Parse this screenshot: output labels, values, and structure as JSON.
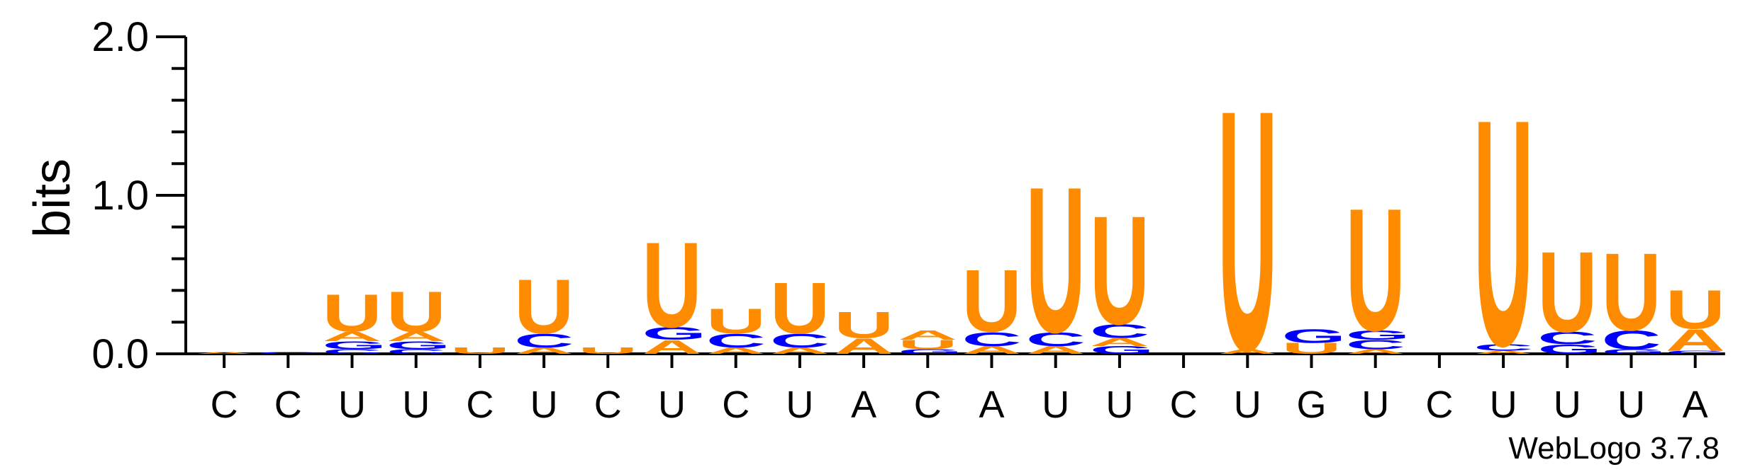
{
  "chart_data": {
    "type": "sequence-logo",
    "ylabel": "bits",
    "ylim": [
      0,
      2
    ],
    "yticks": [
      "0.0",
      "1.0",
      "2.0"
    ],
    "colors": {
      "U": "#ff8c00",
      "C": "#0000ff",
      "G": "#0000ff",
      "A": "#ff8c00"
    },
    "positions": [
      {
        "label": "C",
        "stack": [
          {
            "letter": "A",
            "h": 0.01
          }
        ]
      },
      {
        "label": "C",
        "stack": [
          {
            "letter": "C",
            "h": 0.01
          }
        ]
      },
      {
        "label": "U",
        "stack": [
          {
            "letter": "C",
            "h": 0.03
          },
          {
            "letter": "G",
            "h": 0.05
          },
          {
            "letter": "A",
            "h": 0.06
          },
          {
            "letter": "U",
            "h": 0.24
          }
        ]
      },
      {
        "label": "U",
        "stack": [
          {
            "letter": "C",
            "h": 0.03
          },
          {
            "letter": "G",
            "h": 0.05
          },
          {
            "letter": "A",
            "h": 0.06
          },
          {
            "letter": "U",
            "h": 0.26
          }
        ]
      },
      {
        "label": "C",
        "stack": [
          {
            "letter": "U",
            "h": 0.04
          }
        ]
      },
      {
        "label": "U",
        "stack": [
          {
            "letter": "A",
            "h": 0.04
          },
          {
            "letter": "C",
            "h": 0.09
          },
          {
            "letter": "U",
            "h": 0.35
          }
        ]
      },
      {
        "label": "C",
        "stack": [
          {
            "letter": "U",
            "h": 0.04
          }
        ]
      },
      {
        "label": "U",
        "stack": [
          {
            "letter": "A",
            "h": 0.09
          },
          {
            "letter": "G",
            "h": 0.08
          },
          {
            "letter": "U",
            "h": 0.55
          }
        ]
      },
      {
        "label": "C",
        "stack": [
          {
            "letter": "A",
            "h": 0.04
          },
          {
            "letter": "C",
            "h": 0.09
          },
          {
            "letter": "U",
            "h": 0.16
          }
        ]
      },
      {
        "label": "U",
        "stack": [
          {
            "letter": "A",
            "h": 0.04
          },
          {
            "letter": "C",
            "h": 0.09
          },
          {
            "letter": "U",
            "h": 0.33
          }
        ]
      },
      {
        "label": "A",
        "stack": [
          {
            "letter": "A",
            "h": 0.1
          },
          {
            "letter": "U",
            "h": 0.17
          }
        ]
      },
      {
        "label": "C",
        "stack": [
          {
            "letter": "G",
            "h": 0.03
          },
          {
            "letter": "U",
            "h": 0.06
          },
          {
            "letter": "A",
            "h": 0.06
          }
        ]
      },
      {
        "label": "A",
        "stack": [
          {
            "letter": "A",
            "h": 0.05
          },
          {
            "letter": "C",
            "h": 0.09
          },
          {
            "letter": "U",
            "h": 0.4
          }
        ]
      },
      {
        "label": "U",
        "stack": [
          {
            "letter": "A",
            "h": 0.05
          },
          {
            "letter": "C",
            "h": 0.09
          },
          {
            "letter": "U",
            "h": 0.94
          }
        ]
      },
      {
        "label": "U",
        "stack": [
          {
            "letter": "G",
            "h": 0.05
          },
          {
            "letter": "A",
            "h": 0.05
          },
          {
            "letter": "C",
            "h": 0.09
          },
          {
            "letter": "U",
            "h": 0.7
          }
        ]
      },
      {
        "label": "C",
        "stack": []
      },
      {
        "label": "U",
        "stack": [
          {
            "letter": "A",
            "h": 0.03
          },
          {
            "letter": "U",
            "h": 1.55
          }
        ]
      },
      {
        "label": "G",
        "stack": [
          {
            "letter": "U",
            "h": 0.07
          },
          {
            "letter": "G",
            "h": 0.09
          }
        ]
      },
      {
        "label": "U",
        "stack": [
          {
            "letter": "A",
            "h": 0.03
          },
          {
            "letter": "C",
            "h": 0.06
          },
          {
            "letter": "G",
            "h": 0.06
          },
          {
            "letter": "U",
            "h": 0.79
          }
        ]
      },
      {
        "label": "C",
        "stack": []
      },
      {
        "label": "U",
        "stack": [
          {
            "letter": "A",
            "h": 0.02
          },
          {
            "letter": "C",
            "h": 0.04
          },
          {
            "letter": "U",
            "h": 1.46
          }
        ]
      },
      {
        "label": "U",
        "stack": [
          {
            "letter": "G",
            "h": 0.06
          },
          {
            "letter": "C",
            "h": 0.08
          },
          {
            "letter": "U",
            "h": 0.52
          }
        ]
      },
      {
        "label": "U",
        "stack": [
          {
            "letter": "G",
            "h": 0.03
          },
          {
            "letter": "C",
            "h": 0.12
          },
          {
            "letter": "U",
            "h": 0.5
          }
        ]
      },
      {
        "label": "A",
        "stack": [
          {
            "letter": "C",
            "h": 0.02
          },
          {
            "letter": "A",
            "h": 0.14
          },
          {
            "letter": "U",
            "h": 0.25
          }
        ]
      }
    ]
  },
  "footer": {
    "credit": "WebLogo 3.7.8"
  }
}
